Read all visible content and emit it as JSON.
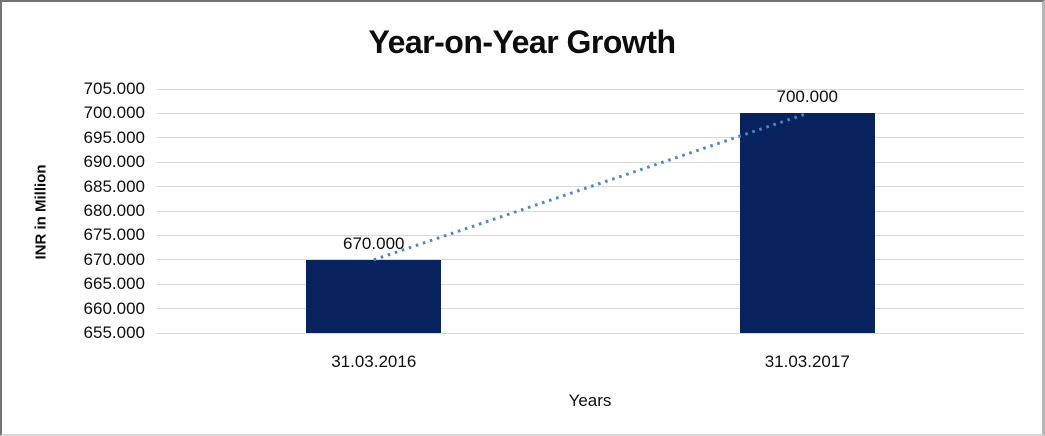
{
  "chart_data": {
    "type": "bar",
    "title": "Year-on-Year Growth",
    "xlabel": "Years",
    "ylabel": "INR in Million",
    "categories": [
      "31.03.2016",
      "31.03.2017"
    ],
    "values": [
      670,
      700
    ],
    "value_labels": [
      "670.000",
      "700.000"
    ],
    "yticks": [
      "705.000",
      "700.000",
      "695.000",
      "690.000",
      "685.000",
      "680.000",
      "675.000",
      "670.000",
      "665.000",
      "660.000",
      "655.000"
    ],
    "ylim": [
      655,
      705
    ],
    "grid": "horizontal",
    "legend": "none",
    "trendline": {
      "style": "dotted",
      "connects": "bar tops",
      "from_value": 670,
      "to_value": 700
    },
    "colors": {
      "bar": "#07225d",
      "gridline": "#d9d9d9",
      "trendline": "#4e86c9",
      "text": "#0d0d0d"
    }
  }
}
